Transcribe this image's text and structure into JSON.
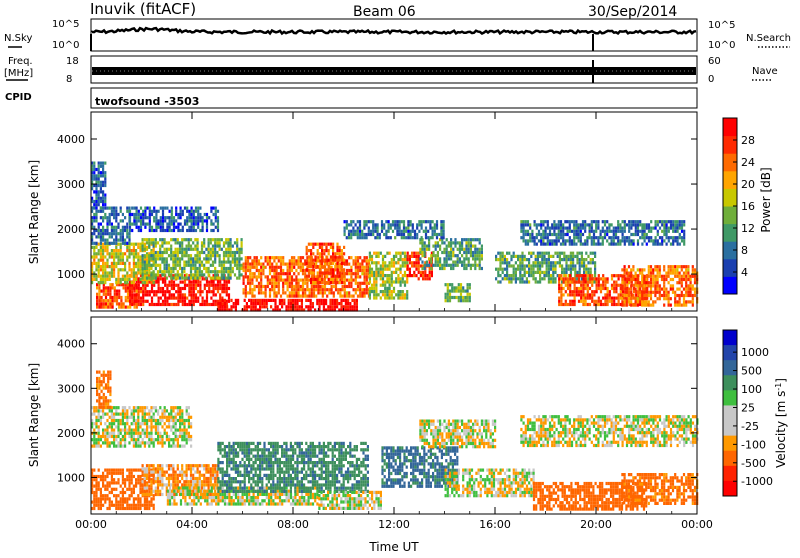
{
  "header": {
    "station": "Inuvik (fitACF)",
    "beam": "Beam 06",
    "date": "30/Sep/2014"
  },
  "top_panels": {
    "nsky_label": "N.Sky",
    "nsky_top": "10^5",
    "nsky_bottom": "10^0",
    "nsearch_label": "N.Search",
    "nsearch_top": "10^5",
    "nsearch_bottom": "10^0",
    "freq_label": "Freq.",
    "freq_unit": "[MHz]",
    "freq_top": "18",
    "freq_bottom": "8",
    "nave_label": "Nave",
    "nave_top": "60",
    "nave_bottom": "0",
    "cpid_label": "CPID",
    "cpid_value": "twofsound -3503"
  },
  "colors": {
    "power_scale": [
      "#0000ff",
      "#1a3fb0",
      "#2a6fa0",
      "#3f9966",
      "#6fae3a",
      "#c8c800",
      "#ffa500",
      "#ff6a00",
      "#ff2a00",
      "#ff0000"
    ],
    "velocity_scale": [
      "#0000cc",
      "#2244aa",
      "#336699",
      "#3d8f5c",
      "#3fbf3f",
      "#c8c8c8",
      "#c8c8c8",
      "#ff9900",
      "#ff6600",
      "#ff2200",
      "#ff0000"
    ]
  },
  "chart_data": [
    {
      "type": "heatmap",
      "title": "Power",
      "xlabel": "",
      "ylabel": "Slant Range [km]",
      "x_ticks": [
        "00:00",
        "04:00",
        "08:00",
        "12:00",
        "16:00",
        "20:00",
        "00:00"
      ],
      "y_ticks": [
        1000,
        2000,
        3000,
        4000
      ],
      "ylim": [
        180,
        4600
      ],
      "xlim_hours": [
        0,
        24
      ],
      "colorbar": {
        "label": "Power [dB]",
        "ticks": [
          4,
          8,
          12,
          16,
          20,
          24,
          28
        ],
        "range": [
          0,
          32
        ]
      },
      "regions": [
        {
          "t0": 0.2,
          "t1": 1.8,
          "r0": 300,
          "r1": 800,
          "v": 26
        },
        {
          "t0": 1.5,
          "t1": 5.5,
          "r0": 300,
          "r1": 1000,
          "v": 30
        },
        {
          "t0": 5.0,
          "t1": 10.5,
          "r0": 200,
          "r1": 450,
          "v": 31
        },
        {
          "t0": 0.0,
          "t1": 2.5,
          "r0": 800,
          "r1": 1700,
          "v": 18
        },
        {
          "t0": 2.0,
          "t1": 6.0,
          "r0": 900,
          "r1": 1800,
          "v": 14
        },
        {
          "t0": 6.0,
          "t1": 11.0,
          "r0": 500,
          "r1": 1400,
          "v": 24
        },
        {
          "t0": 8.5,
          "t1": 10.0,
          "r0": 800,
          "r1": 1700,
          "v": 26
        },
        {
          "t0": 11.0,
          "t1": 12.5,
          "r0": 500,
          "r1": 1500,
          "v": 16
        },
        {
          "t0": 12.5,
          "t1": 13.5,
          "r0": 900,
          "r1": 1500,
          "v": 28
        },
        {
          "t0": 13.0,
          "t1": 15.5,
          "r0": 1100,
          "r1": 1800,
          "v": 12
        },
        {
          "t0": 14.0,
          "t1": 15.0,
          "r0": 400,
          "r1": 800,
          "v": 14
        },
        {
          "t0": 16.0,
          "t1": 20.0,
          "r0": 800,
          "r1": 1500,
          "v": 12
        },
        {
          "t0": 18.5,
          "t1": 22.0,
          "r0": 300,
          "r1": 1000,
          "v": 26
        },
        {
          "t0": 21.0,
          "t1": 24.0,
          "r0": 300,
          "r1": 1200,
          "v": 24
        },
        {
          "t0": 17.0,
          "t1": 23.5,
          "r0": 1700,
          "r1": 2200,
          "v": 8
        },
        {
          "t0": 0.0,
          "t1": 1.5,
          "r0": 1700,
          "r1": 2500,
          "v": 8
        },
        {
          "t0": 1.5,
          "t1": 5.0,
          "r0": 2000,
          "r1": 2500,
          "v": 6
        },
        {
          "t0": 10.0,
          "t1": 14.0,
          "r0": 1800,
          "r1": 2200,
          "v": 8
        },
        {
          "t0": 0.0,
          "t1": 0.6,
          "r0": 2500,
          "r1": 3500,
          "v": 6
        }
      ]
    },
    {
      "type": "heatmap",
      "title": "Velocity",
      "xlabel": "Time UT",
      "ylabel": "Slant Range [km]",
      "x_ticks": [
        "00:00",
        "04:00",
        "08:00",
        "12:00",
        "16:00",
        "20:00",
        "00:00"
      ],
      "y_ticks": [
        1000,
        2000,
        3000,
        4000
      ],
      "ylim": [
        180,
        4600
      ],
      "xlim_hours": [
        0,
        24
      ],
      "colorbar": {
        "label": "Velocity [m s^-1]",
        "ticks": [
          1000,
          500,
          100,
          25,
          -25,
          -100,
          -500,
          -1000
        ]
      },
      "regions": [
        {
          "t0": 0.0,
          "t1": 2.5,
          "r0": 300,
          "r1": 1200,
          "v": -200
        },
        {
          "t0": 2.0,
          "t1": 5.0,
          "r0": 600,
          "r1": 1300,
          "v": -80
        },
        {
          "t0": 3.0,
          "t1": 9.0,
          "r0": 400,
          "r1": 800,
          "v": 0
        },
        {
          "t0": 5.0,
          "t1": 11.0,
          "r0": 700,
          "r1": 1800,
          "v": 200
        },
        {
          "t0": 9.0,
          "t1": 11.5,
          "r0": 300,
          "r1": 700,
          "v": 0
        },
        {
          "t0": 11.5,
          "t1": 14.5,
          "r0": 800,
          "r1": 1700,
          "v": 300
        },
        {
          "t0": 14.0,
          "t1": 17.5,
          "r0": 600,
          "r1": 1200,
          "v": 0
        },
        {
          "t0": 17.5,
          "t1": 22.0,
          "r0": 300,
          "r1": 900,
          "v": -200
        },
        {
          "t0": 21.0,
          "t1": 24.0,
          "r0": 400,
          "r1": 1100,
          "v": -150
        },
        {
          "t0": 0.0,
          "t1": 4.0,
          "r0": 1700,
          "r1": 2600,
          "v": 0
        },
        {
          "t0": 13.0,
          "t1": 16.0,
          "r0": 1700,
          "r1": 2300,
          "v": 0
        },
        {
          "t0": 17.0,
          "t1": 24.0,
          "r0": 1700,
          "r1": 2400,
          "v": 0
        },
        {
          "t0": 0.2,
          "t1": 0.8,
          "r0": 2600,
          "r1": 3400,
          "v": -150
        }
      ]
    }
  ]
}
